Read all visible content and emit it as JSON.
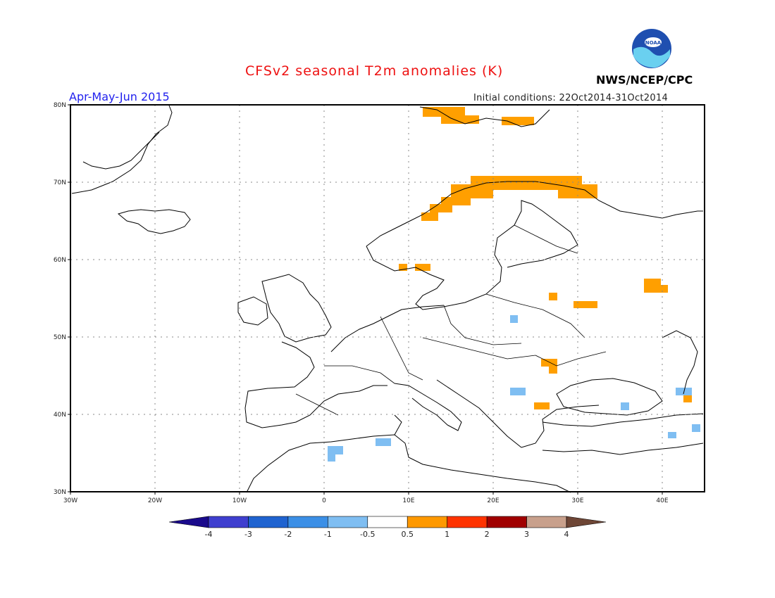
{
  "header": {
    "title": "CFSv2 seasonal T2m anomalies (K)",
    "period": "Apr-May-Jun 2015",
    "initial_conditions": "Initial conditions: 22Oct2014-31Oct2014",
    "agency": "NWS/NCEP/CPC",
    "logo_text": "NOAA"
  },
  "map": {
    "lat_labels": [
      "80N",
      "70N",
      "60N",
      "50N",
      "40N",
      "30N"
    ],
    "lon_labels": [
      "30W",
      "20W",
      "10W",
      "0",
      "10E",
      "20E",
      "30E",
      "40E"
    ],
    "lon_range": [
      -30,
      45
    ],
    "lat_range": [
      30,
      80
    ],
    "grid": true
  },
  "colorbar": {
    "labels": [
      "-4",
      "-3",
      "-2",
      "-1",
      "-0.5",
      "0.5",
      "1",
      "2",
      "3",
      "4"
    ],
    "colors": [
      "#1a0a8c",
      "#3f3fcf",
      "#1f63d0",
      "#3b8fe6",
      "#7fbef2",
      "#ffffff",
      "#ff9900",
      "#ff3300",
      "#a00000",
      "#c8a08c",
      "#6e4636"
    ]
  },
  "anomaly_colors": {
    "warm_0_5_1": "#ff9f00",
    "cool_-1_-0_5": "#7fbef2"
  }
}
